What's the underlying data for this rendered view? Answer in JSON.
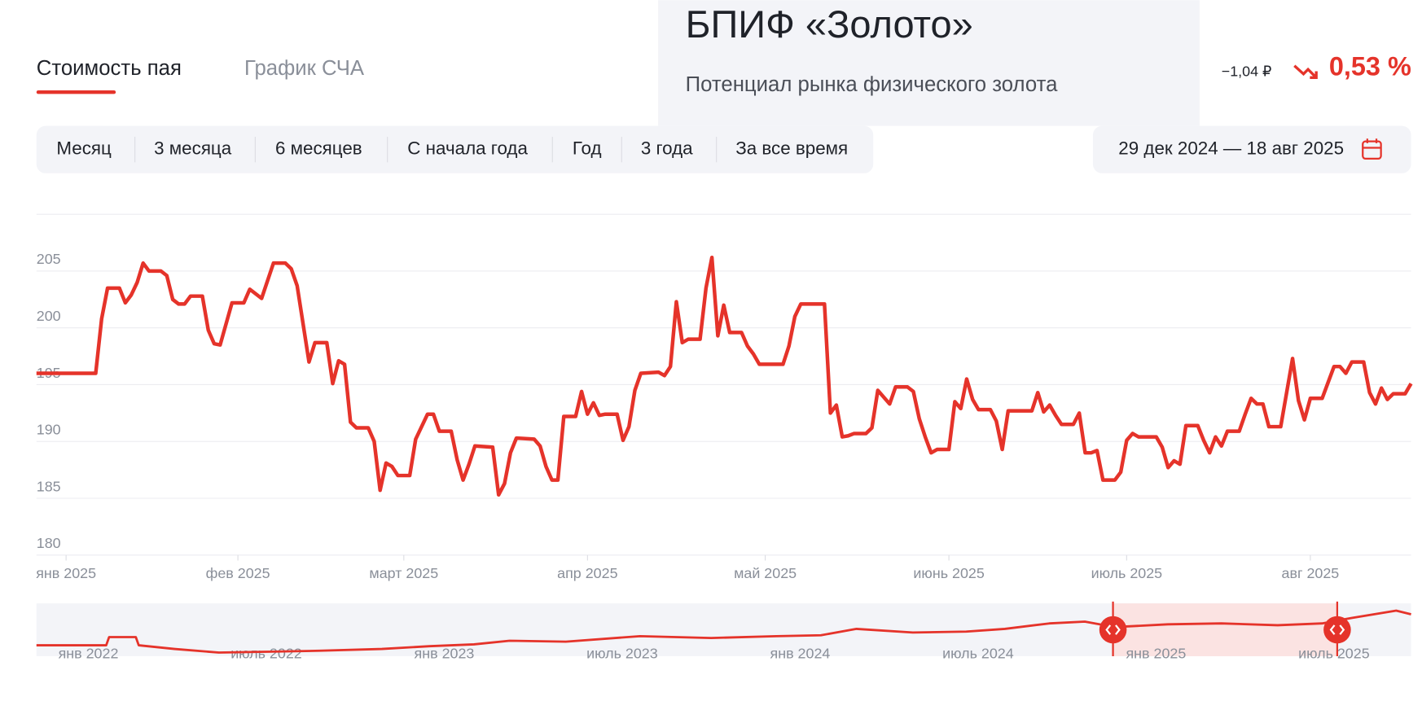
{
  "tabs": [
    "Стоимость пая",
    "График СЧА"
  ],
  "header": {
    "title": "БПИФ «Золото»",
    "subtitle": "Потенциал рынка физического золота",
    "change_abs": "−1,04 ₽",
    "change_pct": "0,53 %"
  },
  "periods": [
    "Месяц",
    "3 месяца",
    "6 месяцев",
    "С начала года",
    "Год",
    "3 года",
    "За все время"
  ],
  "date_range": "29 дек 2024 — 18 авг 2025",
  "chart_data": {
    "type": "line",
    "color": "#e5332a",
    "grid": true,
    "ylim": [
      180,
      210
    ],
    "yticks": [
      180,
      185,
      190,
      195,
      200,
      205
    ],
    "xlim": [
      0,
      232
    ],
    "xticks": [
      {
        "value": 5,
        "label": "янв 2025"
      },
      {
        "value": 34,
        "label": "фев 2025"
      },
      {
        "value": 62,
        "label": "март 2025"
      },
      {
        "value": 93,
        "label": "апр 2025"
      },
      {
        "value": 123,
        "label": "май 2025"
      },
      {
        "value": 154,
        "label": "июнь 2025"
      },
      {
        "value": 184,
        "label": "июль 2025"
      },
      {
        "value": 215,
        "label": "авг 2025"
      }
    ],
    "x": [
      0,
      10,
      11,
      12,
      14,
      15,
      16,
      17,
      18,
      19,
      21,
      22,
      23,
      24,
      25,
      26,
      28,
      29,
      30,
      31,
      33,
      35,
      36,
      38,
      40,
      42,
      43,
      44,
      46,
      47,
      49,
      50,
      51,
      52,
      53,
      54,
      56,
      57,
      58,
      59,
      60,
      61,
      63,
      64,
      66,
      67,
      68,
      70,
      71,
      72,
      73,
      74,
      77,
      78,
      79,
      80,
      81,
      84,
      85,
      86,
      87,
      88,
      89,
      91,
      92,
      93,
      94,
      95,
      96,
      98,
      99,
      100,
      101,
      102,
      105,
      106,
      107,
      108,
      109,
      110,
      112,
      113,
      114,
      115,
      116,
      117,
      119,
      120,
      121,
      122,
      126,
      127,
      128,
      129,
      133,
      134,
      135,
      136,
      137,
      138,
      140,
      141,
      142,
      144,
      145,
      147,
      148,
      149,
      150,
      151,
      152,
      154,
      155,
      156,
      157,
      158,
      159,
      161,
      162,
      163,
      164,
      168,
      169,
      170,
      171,
      172,
      173,
      175,
      176,
      177,
      178,
      179,
      180,
      182,
      183,
      184,
      185,
      186,
      189,
      190,
      191,
      192,
      193,
      194,
      196,
      197,
      198,
      199,
      200,
      201,
      203,
      204,
      205,
      206,
      207,
      208,
      210,
      211,
      212,
      213,
      214,
      215,
      217,
      218,
      219,
      220,
      221,
      222,
      224,
      225,
      226,
      227,
      228,
      229,
      231,
      232
    ],
    "values": [
      196,
      196,
      200.8,
      203.5,
      203.5,
      202.2,
      202.9,
      204,
      205.7,
      205,
      205,
      204.6,
      202.5,
      202.1,
      202.1,
      202.8,
      202.8,
      199.8,
      198.6,
      198.5,
      202.2,
      202.2,
      203.4,
      202.6,
      205.7,
      205.7,
      205.2,
      203.7,
      197,
      198.7,
      198.7,
      195.1,
      197.1,
      196.8,
      191.7,
      191.2,
      191.2,
      190,
      185.7,
      188.1,
      187.8,
      187,
      187,
      190.2,
      192.4,
      192.4,
      190.9,
      190.9,
      188.4,
      186.6,
      188,
      189.6,
      189.5,
      185.3,
      186.3,
      189,
      190.3,
      190.2,
      189.6,
      187.8,
      186.6,
      186.6,
      192.2,
      192.2,
      194.4,
      192.4,
      193.4,
      192.3,
      192.4,
      192.4,
      190.1,
      191.3,
      194.5,
      196,
      196.1,
      195.8,
      196.6,
      202.3,
      198.7,
      199,
      199,
      203.5,
      206.2,
      199.3,
      202,
      199.6,
      199.6,
      198.4,
      197.7,
      196.8,
      196.8,
      198.4,
      201,
      202.1,
      202.1,
      192.5,
      193.2,
      190.4,
      190.5,
      190.7,
      190.7,
      191.2,
      194.5,
      193.3,
      194.8,
      194.8,
      194.4,
      192,
      190.4,
      189,
      189.3,
      189.3,
      193.5,
      192.9,
      195.5,
      193.7,
      192.8,
      192.8,
      191.8,
      189.3,
      192.7,
      192.7,
      194.3,
      192.6,
      193.2,
      192.3,
      191.5,
      191.5,
      192.5,
      189,
      189,
      189.2,
      186.6,
      186.6,
      187.3,
      190.1,
      190.7,
      190.4,
      190.4,
      189.5,
      187.7,
      188.3,
      188,
      191.4,
      191.4,
      190.1,
      189,
      190.4,
      189.6,
      190.9,
      190.9,
      192.4,
      193.8,
      193.3,
      193.3,
      191.3,
      191.3,
      194.3,
      197.3,
      193.6,
      191.9,
      193.8,
      193.8,
      195.2,
      196.6,
      196.6,
      196,
      197,
      197,
      194.3,
      193.3,
      194.7,
      193.7,
      194.2,
      194.2,
      195.1
    ]
  },
  "navigator": {
    "type": "line",
    "color": "#e5332a",
    "xlim": [
      -1.75,
      44.6
    ],
    "ylim": [
      175,
      209.8
    ],
    "xticks": [
      {
        "value": 0,
        "label": "янв 2022"
      },
      {
        "value": 6,
        "label": "июль 2022"
      },
      {
        "value": 12,
        "label": "янв 2023"
      },
      {
        "value": 18,
        "label": "июль 2023"
      },
      {
        "value": 24,
        "label": "янв 2024"
      },
      {
        "value": 30,
        "label": "июль 2024"
      },
      {
        "value": 36,
        "label": "янв 2025"
      },
      {
        "value": 42,
        "label": "июль 2025"
      }
    ],
    "x": [
      -1.75,
      0.6,
      0.7,
      1.6,
      1.7,
      2.9,
      4.4,
      6.2,
      7.8,
      9.9,
      11.5,
      13,
      14.2,
      16.1,
      18.6,
      21,
      23.2,
      24.7,
      25.9,
      27.8,
      29.6,
      30.9,
      32.4,
      33.6,
      34.6,
      36.4,
      38.2,
      40.1,
      41.6,
      42.6,
      44.1,
      44.6
    ],
    "values": [
      182.2,
      182.2,
      187.6,
      187.6,
      182.2,
      179.8,
      177.4,
      178,
      178.6,
      179.8,
      181.6,
      182.8,
      185.2,
      184.6,
      188.2,
      187,
      188.2,
      188.8,
      193,
      190.6,
      191.2,
      193,
      196.6,
      197.8,
      194.2,
      196,
      196.6,
      195.4,
      196.6,
      200.2,
      205,
      202.6
    ]
  }
}
